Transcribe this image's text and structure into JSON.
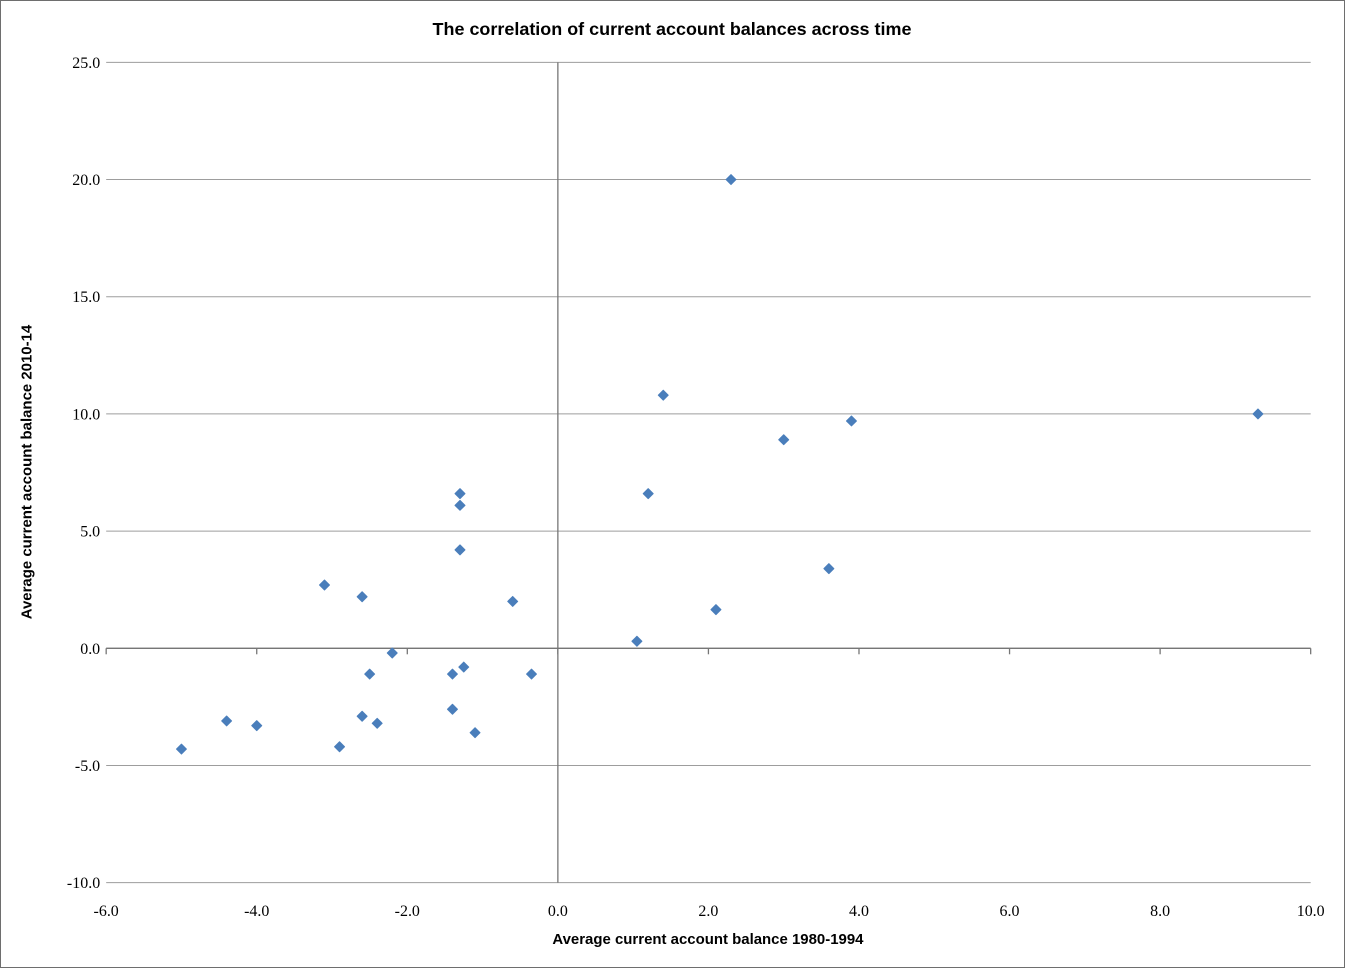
{
  "window": {
    "background": "#ffffff",
    "border_color": "#6e6e6e"
  },
  "chart_data": {
    "type": "scatter",
    "title": "The correlation of current account balances across time",
    "xlabel": "Average current account balance 1980-1994",
    "ylabel": "Average current account balance 2010-14",
    "xlim": [
      -6.0,
      10.0
    ],
    "ylim": [
      -10.0,
      25.0
    ],
    "x_ticks": {
      "values": [
        -6,
        -4,
        -2,
        0,
        2,
        4,
        6,
        8,
        10
      ],
      "labels": [
        "-6.0",
        "-4.0",
        "-2.0",
        "0.0",
        "2.0",
        "4.0",
        "6.0",
        "8.0",
        "10.0"
      ]
    },
    "y_ticks": {
      "values": [
        25,
        20,
        15,
        10,
        5,
        0,
        -5,
        -10
      ],
      "labels": [
        "25.0",
        "20.0",
        "15.0",
        "10.0",
        "5.0",
        "0.0",
        "-5.0",
        "-10.0"
      ]
    },
    "grid": {
      "horizontal": true,
      "vertical": false,
      "gridline_color": "#9d9d9d",
      "axis_color": "#767676",
      "axes_cross_at": [
        0,
        0
      ]
    },
    "legend": "none",
    "marker": {
      "shape": "diamond",
      "color": "#4a7ebb",
      "size": 10
    },
    "series": [
      {
        "name": "Current account balance",
        "points": [
          [
            -5.0,
            -4.3
          ],
          [
            -4.4,
            -3.1
          ],
          [
            -4.0,
            -3.3
          ],
          [
            -3.1,
            2.7
          ],
          [
            -2.9,
            -4.2
          ],
          [
            -2.6,
            2.2
          ],
          [
            -2.6,
            -2.9
          ],
          [
            -2.5,
            -1.1
          ],
          [
            -2.4,
            -3.2
          ],
          [
            -2.2,
            -0.2
          ],
          [
            -1.4,
            -1.1
          ],
          [
            -1.4,
            -2.6
          ],
          [
            -1.3,
            6.6
          ],
          [
            -1.3,
            6.1
          ],
          [
            -1.3,
            4.2
          ],
          [
            -1.25,
            -0.8
          ],
          [
            -1.1,
            -3.6
          ],
          [
            -0.6,
            2.0
          ],
          [
            -0.35,
            -1.1
          ],
          [
            1.05,
            0.3
          ],
          [
            1.2,
            6.6
          ],
          [
            1.4,
            10.8
          ],
          [
            2.1,
            1.65
          ],
          [
            2.3,
            20.0
          ],
          [
            3.0,
            8.9
          ],
          [
            3.6,
            3.4
          ],
          [
            3.9,
            9.7
          ],
          [
            9.3,
            10.0
          ]
        ]
      }
    ]
  }
}
